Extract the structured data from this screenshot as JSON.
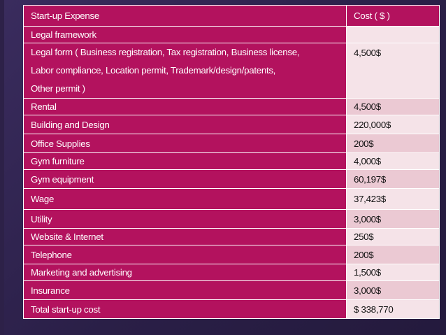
{
  "table": {
    "headers": [
      "Start-up Expense",
      "Cost ( $ )"
    ],
    "rows": [
      {
        "expense": "Legal framework",
        "cost": ""
      },
      {
        "expense_lines": [
          "Legal form ( Business registration, Tax registration, Business license,",
          "Labor compliance, Location permit, Trademark/design/patents,",
          "Other permit )"
        ],
        "cost": "4,500$"
      },
      {
        "expense": "Rental",
        "cost": "4,500$"
      },
      {
        "expense": "Building and Design",
        "cost": "220,000$"
      },
      {
        "expense": "Office Supplies",
        "cost": "200$"
      },
      {
        "expense": "Gym furniture",
        "cost": "4,000$"
      },
      {
        "expense": "Gym equipment",
        "cost": "60,197$"
      },
      {
        "expense": "Wage",
        "cost": "37,423$"
      },
      {
        "expense": "Utility",
        "cost": "3,000$"
      },
      {
        "expense": "Website & Internet",
        "cost": "250$"
      },
      {
        "expense": "Telephone",
        "cost": "200$"
      },
      {
        "expense": "Marketing and advertising",
        "cost": "1,500$"
      },
      {
        "expense": "Insurance",
        "cost": "3,000$"
      },
      {
        "expense": "Total start-up cost",
        "cost": "$ 338,770"
      }
    ]
  },
  "colors": {
    "header_bg": "#b3125e",
    "label_bg": "#b3125e",
    "cost_bg_dark": "#ebc9d3",
    "cost_bg_light": "#f5e3e8",
    "slide_bg": "#2a2046"
  }
}
